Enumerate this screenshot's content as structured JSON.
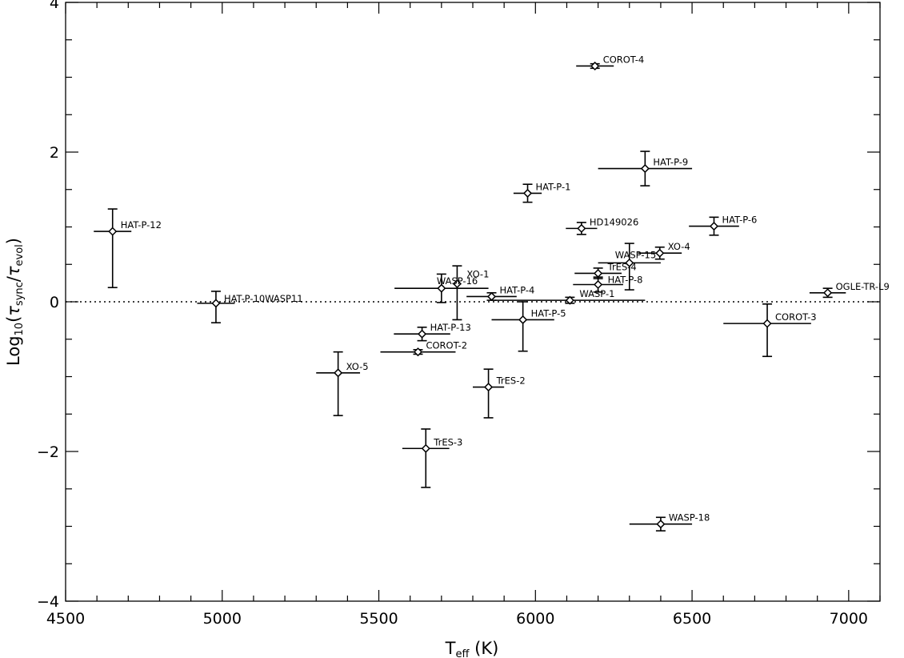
{
  "chart_data": {
    "type": "scatter",
    "title": "",
    "xlim": [
      4500,
      7100
    ],
    "ylim": [
      -4,
      4
    ],
    "x_ticks": [
      4500,
      5000,
      5500,
      6000,
      6500,
      7000
    ],
    "y_ticks": [
      -4,
      -2,
      0,
      2,
      4
    ],
    "x_tick_labels": [
      "4500",
      "5000",
      "5500",
      "6000",
      "6500",
      "7000"
    ],
    "y_tick_labels": [
      "−4",
      "−2",
      "0",
      "2",
      "4"
    ],
    "x_minor_step": 100,
    "y_minor_step": 0.5,
    "xlabel": {
      "main": "T",
      "sub": "eff",
      "unit": "(K)"
    },
    "ylabel": {
      "prefix": "Log",
      "sub_prefix": "10",
      "open": "(",
      "tau1": "τ",
      "sub1": "sync",
      "slash": "/",
      "tau2": "τ",
      "sub2": "evol",
      "close": ")"
    },
    "reference_line": {
      "y": 0,
      "style": "dotted"
    },
    "grid": false,
    "marker": "open-diamond",
    "points": [
      {
        "name": "COROT-4",
        "x": 6190,
        "y": 3.15,
        "xerr": 60,
        "yerr": 0.03
      },
      {
        "name": "HAT-P-9",
        "x": 6350,
        "y": 1.78,
        "xerr": 150,
        "yerr": 0.23
      },
      {
        "name": "HAT-P-1",
        "x": 5975,
        "y": 1.45,
        "xerr": 45,
        "yerr": 0.12
      },
      {
        "name": "HD149026",
        "x": 6147,
        "y": 0.98,
        "xerr": 50,
        "yerr": 0.08
      },
      {
        "name": "HAT-P-6",
        "x": 6570,
        "y": 1.01,
        "xerr": 80,
        "yerr": 0.12
      },
      {
        "name": "HAT-P-12",
        "x": 4650,
        "y": 0.94,
        "xerr": 60,
        "yerr": 0.3,
        "yerr_low": 0.75
      },
      {
        "name": "XO-4",
        "x": 6397,
        "y": 0.65,
        "xerr": 70,
        "yerr": 0.08
      },
      {
        "name": "WASP-15",
        "x": 6300,
        "y": 0.52,
        "xerr": 100,
        "yerr": 0.26,
        "yerr_low": 0.36
      },
      {
        "name": "TrES-4",
        "x": 6200,
        "y": 0.38,
        "xerr": 75,
        "yerr": 0.07
      },
      {
        "name": "HAT-P-8",
        "x": 6200,
        "y": 0.23,
        "xerr": 80,
        "yerr": 0.1
      },
      {
        "name": "XO-1",
        "x": 5750,
        "y": 0.24,
        "xerr": 13,
        "yerr": 0.24,
        "yerr_low": 0.48
      },
      {
        "name": "WASP-16",
        "x": 5700,
        "y": 0.18,
        "xerr": 150,
        "yerr": 0.19
      },
      {
        "name": "HAT-P-4",
        "x": 5860,
        "y": 0.07,
        "xerr": 80,
        "yerr": 0.05
      },
      {
        "name": "WASP-1",
        "x": 6110,
        "y": 0.02,
        "xerr": 240,
        "yerr": 0.04
      },
      {
        "name": "OGLE-TR-L9",
        "x": 6933,
        "y": 0.12,
        "xerr": 58,
        "yerr": 0.06
      },
      {
        "name": "HAT-P-10WASP11",
        "x": 4980,
        "y": -0.02,
        "xerr": 60,
        "yerr": 0.16,
        "yerr_low": 0.26
      },
      {
        "name": "HAT-P-5",
        "x": 5960,
        "y": -0.24,
        "xerr": 100,
        "yerr": 0.24,
        "yerr_low": 0.42
      },
      {
        "name": "COROT-3",
        "x": 6740,
        "y": -0.29,
        "xerr": 140,
        "yerr": 0.26,
        "yerr_low": 0.44
      },
      {
        "name": "HAT-P-13",
        "x": 5638,
        "y": -0.43,
        "xerr": 90,
        "yerr": 0.09
      },
      {
        "name": "COROT-2",
        "x": 5625,
        "y": -0.67,
        "xerr": 120,
        "yerr": 0.03
      },
      {
        "name": "XO-5",
        "x": 5370,
        "y": -0.95,
        "xerr": 70,
        "yerr": 0.28,
        "yerr_low": 0.57
      },
      {
        "name": "TrES-2",
        "x": 5850,
        "y": -1.14,
        "xerr": 50,
        "yerr": 0.24,
        "yerr_low": 0.41
      },
      {
        "name": "TrES-3",
        "x": 5650,
        "y": -1.96,
        "xerr": 75,
        "yerr": 0.26,
        "yerr_low": 0.52
      },
      {
        "name": "WASP-18",
        "x": 6400,
        "y": -2.97,
        "xerr": 100,
        "yerr": 0.09
      }
    ]
  }
}
